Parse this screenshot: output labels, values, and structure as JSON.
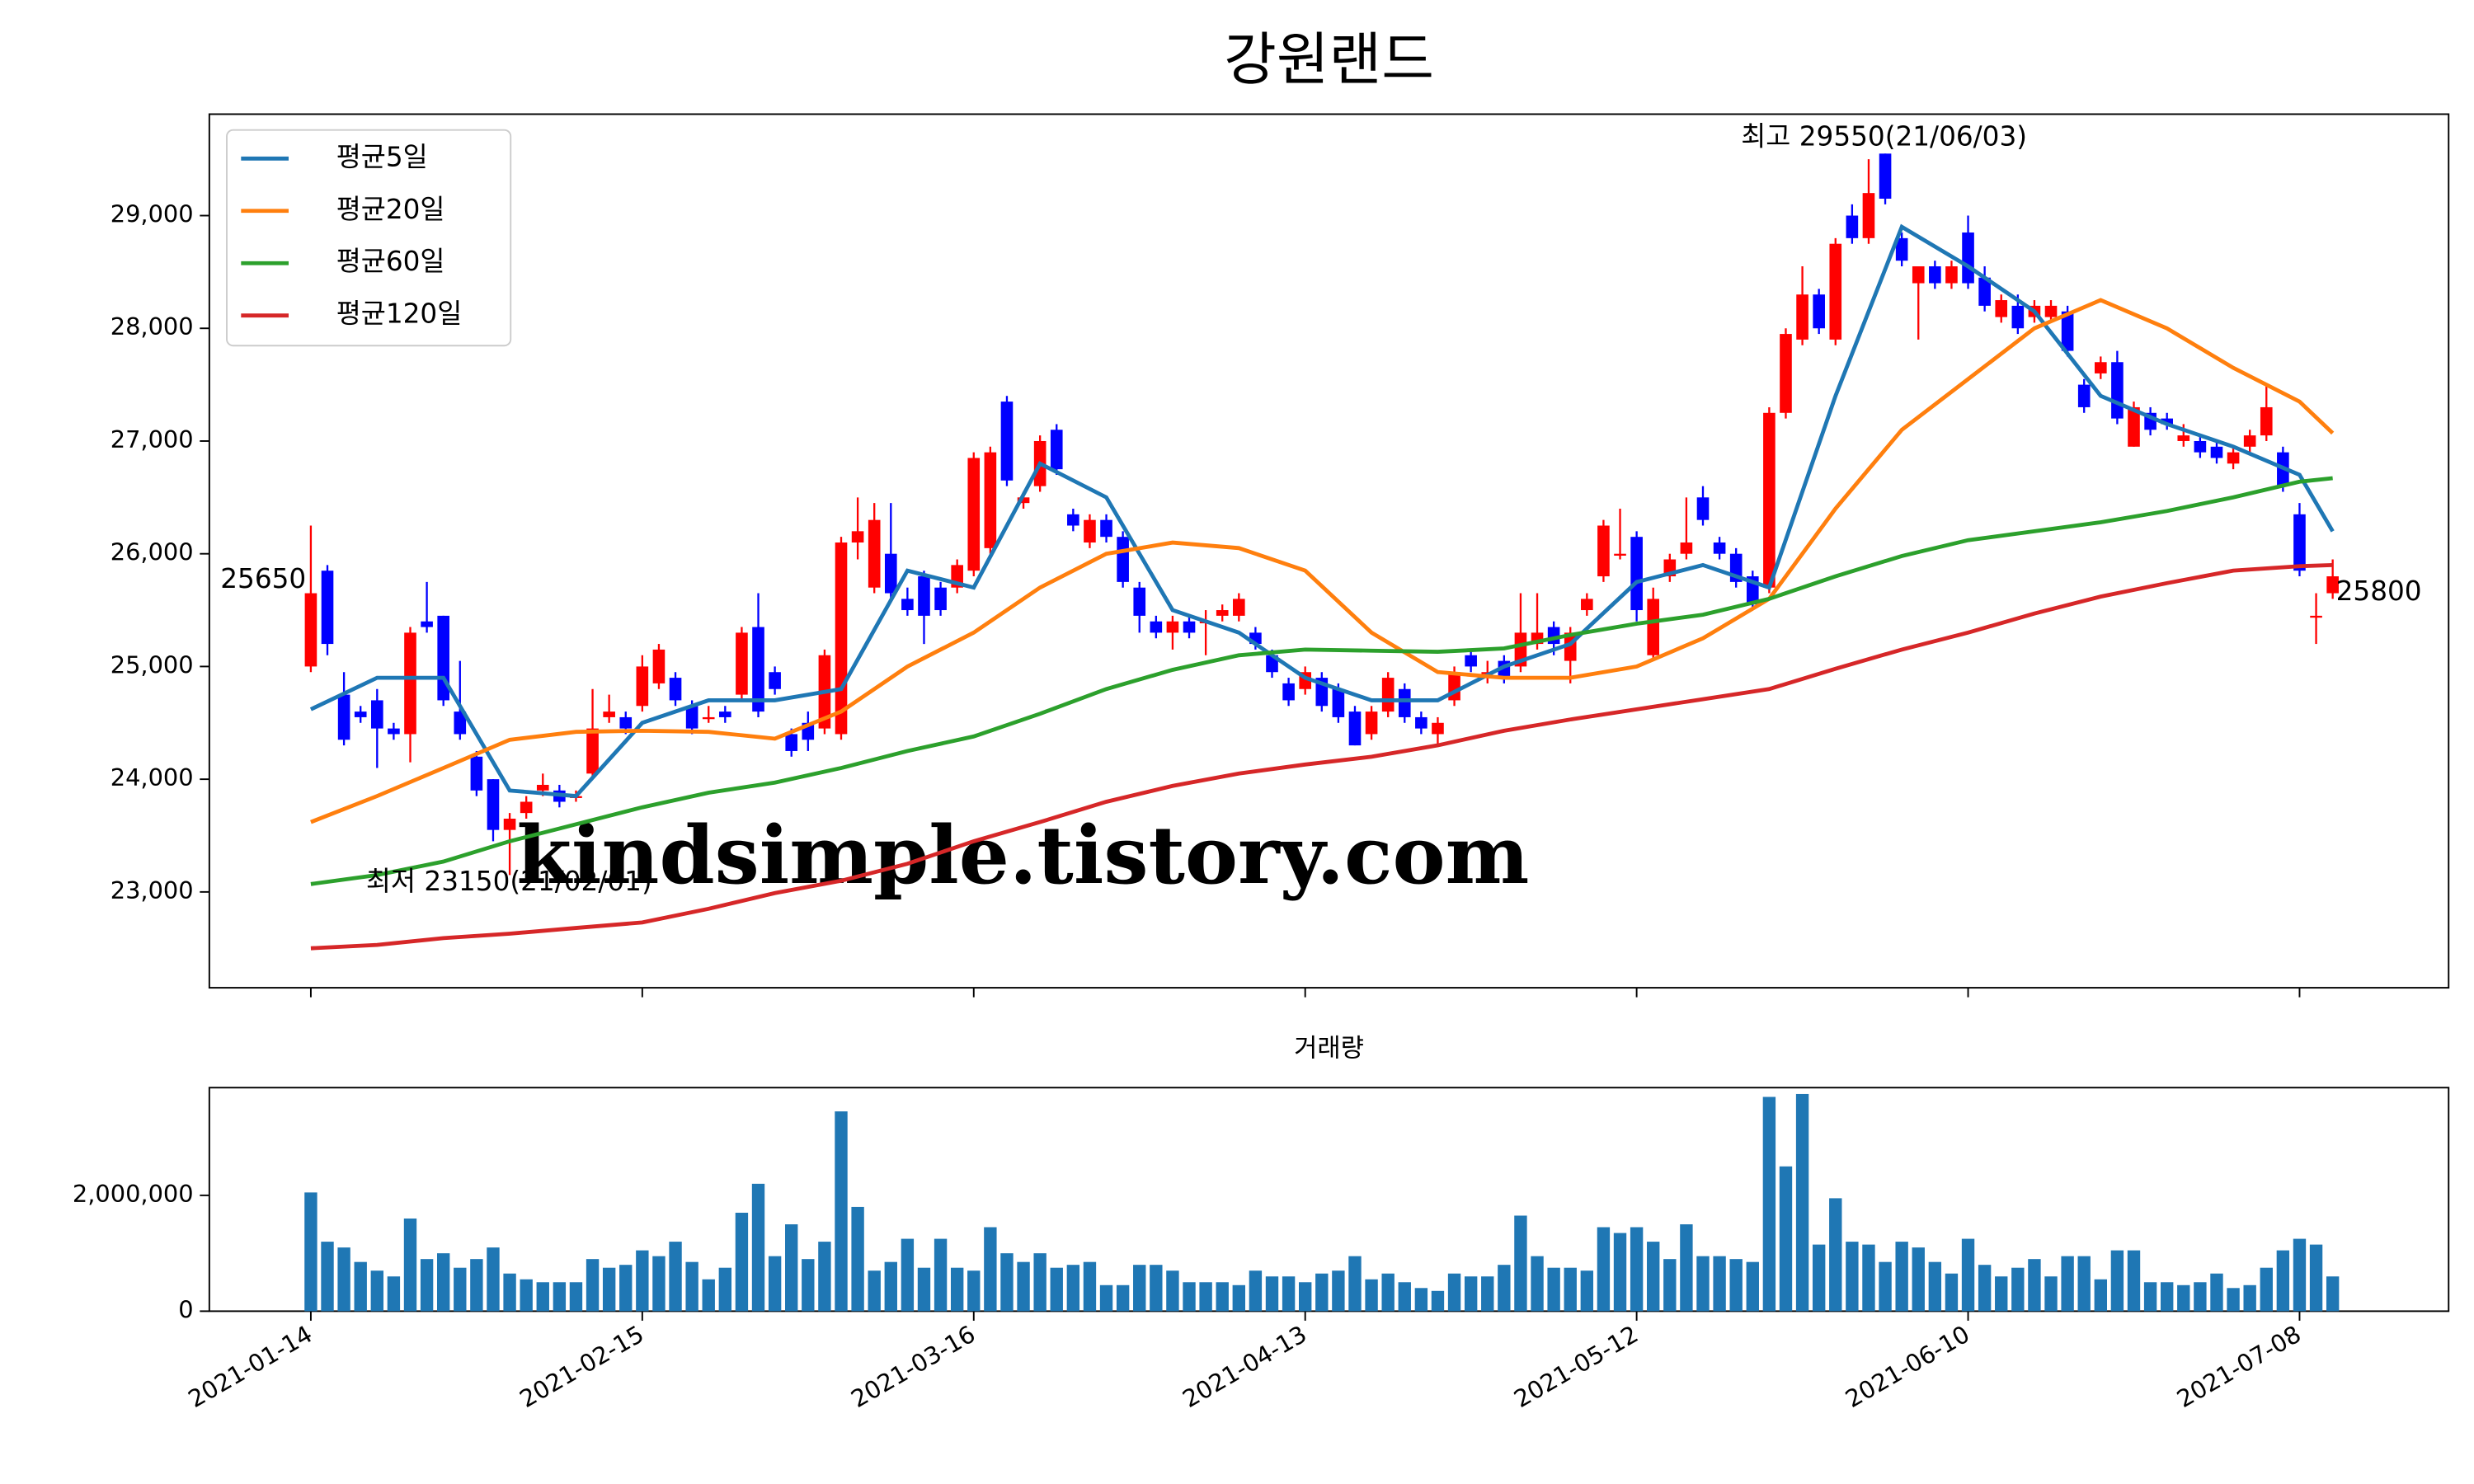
{
  "chart_data": [
    {
      "type": "candlestick",
      "title": "강원랜드",
      "up_color": "#ff0000",
      "down_color": "#0000ff",
      "ylim": [
        22150,
        29900
      ],
      "yticks": [
        {
          "value": 23000,
          "label": "23,000"
        },
        {
          "value": 24000,
          "label": "24,000"
        },
        {
          "value": 25000,
          "label": "25,000"
        },
        {
          "value": 26000,
          "label": "26,000"
        },
        {
          "value": 27000,
          "label": "27,000"
        },
        {
          "value": 28000,
          "label": "28,000"
        },
        {
          "value": 29000,
          "label": "29,000"
        }
      ],
      "open": [
        25000,
        25850,
        24750,
        24600,
        24700,
        24450,
        24400,
        25400,
        25450,
        24600,
        24200,
        24000,
        23550,
        23700,
        23900,
        23900,
        23850,
        24050,
        24550,
        24550,
        24650,
        24850,
        24900,
        24650,
        24550,
        24600,
        24750,
        25350,
        24950,
        24400,
        24500,
        24450,
        24400,
        26100,
        25700,
        26000,
        25600,
        25800,
        25700,
        25700,
        25850,
        26050,
        27350,
        26450,
        26600,
        27100,
        26350,
        26100,
        26300,
        26150,
        25700,
        25400,
        25300,
        25400,
        25400,
        25450,
        25450,
        25300,
        25100,
        24850,
        24800,
        24900,
        24800,
        24600,
        24400,
        24600,
        24800,
        24550,
        24400,
        24700,
        25100,
        24950,
        25050,
        25000,
        25200,
        25350,
        25050,
        25500,
        25800,
        26000,
        26150,
        25100,
        25800,
        26000,
        26500,
        26100,
        26000,
        25800,
        25700,
        27250,
        27900,
        28300,
        27900,
        29000,
        28800,
        29550,
        28800,
        28400,
        28550,
        28400,
        28850,
        28450,
        28100,
        28200,
        28100,
        28100,
        28150,
        27500,
        27600,
        27700,
        26950,
        27250,
        27200,
        27000,
        27000,
        26950,
        26800,
        26950,
        27050,
        26900,
        26350,
        25450,
        25650
      ],
      "high": [
        26250,
        25900,
        24950,
        24650,
        24800,
        24500,
        25350,
        25750,
        25450,
        25050,
        24250,
        24000,
        23700,
        23850,
        24050,
        23950,
        23900,
        24800,
        24750,
        24600,
        25100,
        25200,
        24950,
        24700,
        24650,
        24650,
        25350,
        25650,
        25000,
        24450,
        24600,
        25150,
        26150,
        26500,
        26450,
        26450,
        25700,
        25850,
        25750,
        25950,
        26900,
        26950,
        27400,
        26550,
        27050,
        27150,
        26400,
        26350,
        26350,
        26200,
        25750,
        25450,
        25450,
        25450,
        25500,
        25550,
        25650,
        25350,
        25150,
        24900,
        25000,
        24950,
        24850,
        24650,
        24650,
        24950,
        24850,
        24600,
        24550,
        25000,
        25150,
        25050,
        25100,
        25650,
        25650,
        25400,
        25350,
        25650,
        26300,
        26400,
        26200,
        25700,
        26000,
        26500,
        26600,
        26150,
        26050,
        25850,
        27300,
        28000,
        28550,
        28350,
        28800,
        29100,
        29500,
        29550,
        28850,
        28500,
        28600,
        28600,
        29000,
        28550,
        28300,
        28300,
        28250,
        28250,
        28200,
        27550,
        27750,
        27800,
        27350,
        27300,
        27250,
        27150,
        27050,
        27000,
        26950,
        27100,
        27500,
        26950,
        26450,
        25650,
        25950
      ],
      "low": [
        24950,
        25100,
        24300,
        24500,
        24100,
        24350,
        24150,
        25300,
        24650,
        24350,
        23850,
        23450,
        23150,
        23650,
        23850,
        23750,
        23800,
        24000,
        24500,
        24400,
        24600,
        24800,
        24650,
        24400,
        24500,
        24500,
        24700,
        24550,
        24750,
        24200,
        24250,
        24400,
        24350,
        25950,
        25650,
        25600,
        25450,
        25200,
        25450,
        25650,
        25800,
        26000,
        26600,
        26400,
        26550,
        26700,
        26200,
        26050,
        26100,
        25700,
        25300,
        25250,
        25150,
        25250,
        25100,
        25400,
        25400,
        25150,
        24900,
        24650,
        24750,
        24600,
        24500,
        24300,
        24350,
        24550,
        24500,
        24400,
        24300,
        24650,
        24950,
        24850,
        24850,
        24950,
        25150,
        25100,
        24850,
        25450,
        25750,
        25950,
        25400,
        25050,
        25750,
        25950,
        26250,
        25950,
        25700,
        25500,
        25650,
        27200,
        27850,
        27950,
        27850,
        28750,
        28750,
        29100,
        28550,
        27900,
        28350,
        28350,
        28350,
        28150,
        28050,
        27950,
        28050,
        28050,
        27750,
        27250,
        27550,
        27150,
        26950,
        27050,
        27100,
        26950,
        26850,
        26800,
        26750,
        26900,
        27000,
        26550,
        25800,
        25200,
        25600
      ],
      "close": [
        25650,
        25200,
        24350,
        24550,
        24450,
        24400,
        25300,
        25350,
        24700,
        24400,
        23900,
        23550,
        23650,
        23800,
        23950,
        23800,
        23850,
        24450,
        24600,
        24450,
        25000,
        25150,
        24700,
        24450,
        24550,
        24550,
        25300,
        24600,
        24800,
        24250,
        24350,
        25100,
        26100,
        26200,
        26300,
        25650,
        25500,
        25450,
        25500,
        25900,
        26850,
        26900,
        26650,
        26500,
        27000,
        26750,
        26250,
        26300,
        26150,
        25750,
        25450,
        25300,
        25400,
        25300,
        25400,
        25500,
        25600,
        25200,
        24950,
        24700,
        24950,
        24650,
        24550,
        24300,
        24600,
        24900,
        24550,
        24450,
        24500,
        24950,
        25000,
        24950,
        24900,
        25300,
        25300,
        25200,
        25300,
        25600,
        26250,
        26000,
        25500,
        25600,
        25950,
        26100,
        26300,
        26000,
        25750,
        25550,
        27250,
        27950,
        28300,
        28000,
        28750,
        28800,
        29200,
        29150,
        28600,
        28550,
        28400,
        28550,
        28400,
        28200,
        28250,
        28000,
        28200,
        28200,
        27800,
        27300,
        27700,
        27200,
        27300,
        27100,
        27150,
        27050,
        26900,
        26850,
        26900,
        27050,
        27300,
        26600,
        25850,
        25450,
        25800
      ],
      "series": [
        {
          "name": "평균5일",
          "color": "#1f77b4",
          "x": [
            0,
            4,
            8,
            12,
            16,
            20,
            24,
            28,
            32,
            36,
            40,
            44,
            48,
            52,
            56,
            60,
            64,
            68,
            72,
            76,
            80,
            84,
            88,
            92,
            96,
            100,
            104,
            108,
            112,
            116,
            120,
            122
          ],
          "values": [
            24620,
            24900,
            24900,
            23900,
            23850,
            24500,
            24700,
            24700,
            24800,
            25850,
            25700,
            26800,
            26500,
            25500,
            25300,
            24900,
            24700,
            24700,
            25000,
            25200,
            25750,
            25900,
            25700,
            27400,
            28900,
            28550,
            28150,
            27400,
            27150,
            26950,
            26700,
            26200
          ]
        },
        {
          "name": "평균20일",
          "color": "#ff7f0e",
          "x": [
            0,
            4,
            8,
            12,
            16,
            20,
            24,
            28,
            32,
            36,
            40,
            44,
            48,
            52,
            56,
            60,
            64,
            68,
            72,
            76,
            80,
            84,
            88,
            92,
            96,
            100,
            104,
            108,
            112,
            116,
            120,
            122
          ],
          "values": [
            23620,
            23850,
            24100,
            24350,
            24420,
            24430,
            24420,
            24360,
            24600,
            25000,
            25300,
            25700,
            26000,
            26100,
            26050,
            25850,
            25300,
            24950,
            24900,
            24900,
            25000,
            25250,
            25600,
            26400,
            27100,
            27550,
            28000,
            28250,
            28000,
            27650,
            27350,
            27070
          ]
        },
        {
          "name": "평균60일",
          "color": "#2ca02c",
          "x": [
            0,
            4,
            8,
            12,
            16,
            20,
            24,
            28,
            32,
            36,
            40,
            44,
            48,
            52,
            56,
            60,
            64,
            68,
            72,
            76,
            80,
            84,
            88,
            92,
            96,
            100,
            104,
            108,
            112,
            116,
            120,
            122
          ],
          "values": [
            23070,
            23150,
            23270,
            23450,
            23600,
            23750,
            23880,
            23970,
            24100,
            24250,
            24380,
            24580,
            24800,
            24970,
            25100,
            25150,
            25140,
            25130,
            25160,
            25280,
            25380,
            25460,
            25600,
            25800,
            25980,
            26120,
            26200,
            26280,
            26380,
            26500,
            26640,
            26670
          ]
        },
        {
          "name": "평균120일",
          "color": "#d62728",
          "x": [
            0,
            4,
            8,
            12,
            16,
            20,
            24,
            28,
            32,
            36,
            40,
            44,
            48,
            52,
            56,
            60,
            64,
            68,
            72,
            76,
            80,
            84,
            88,
            92,
            96,
            100,
            104,
            108,
            112,
            116,
            120,
            122
          ],
          "values": [
            22500,
            22530,
            22590,
            22630,
            22680,
            22730,
            22850,
            22990,
            23100,
            23250,
            23450,
            23620,
            23800,
            23940,
            24050,
            24130,
            24200,
            24300,
            24430,
            24530,
            24620,
            24710,
            24800,
            24980,
            25150,
            25300,
            25470,
            25620,
            25740,
            25850,
            25890,
            25900
          ]
        }
      ],
      "legend": "upper left",
      "annotations": [
        {
          "text": "최고 29550(21/06/03)",
          "color": "#ff0000"
        },
        {
          "text": "최저 23150(21/02/01)",
          "color": "#0000ff"
        },
        {
          "text": "25650",
          "color": "#000000"
        },
        {
          "text": "25800",
          "color": "#000000"
        }
      ],
      "watermark": "kindsimple.tistory.com",
      "watermark_color": "#e29be6"
    },
    {
      "type": "bar",
      "title": "거래량",
      "color": "#1f77b4",
      "categories": [
        "2021-01-14",
        null,
        null,
        null,
        null,
        null,
        null,
        null,
        null,
        null,
        null,
        null,
        null,
        null,
        null,
        null,
        null,
        null,
        null,
        null,
        "2021-02-15",
        null,
        null,
        null,
        null,
        null,
        null,
        null,
        null,
        null,
        null,
        null,
        null,
        null,
        null,
        null,
        null,
        null,
        null,
        null,
        "2021-03-16",
        null,
        null,
        null,
        null,
        null,
        null,
        null,
        null,
        null,
        null,
        null,
        null,
        null,
        null,
        null,
        null,
        null,
        null,
        null,
        "2021-04-13",
        null,
        null,
        null,
        null,
        null,
        null,
        null,
        null,
        null,
        null,
        null,
        null,
        null,
        null,
        null,
        null,
        null,
        null,
        null,
        "2021-05-12",
        null,
        null,
        null,
        null,
        null,
        null,
        null,
        null,
        null,
        null,
        null,
        null,
        null,
        null,
        null,
        null,
        null,
        null,
        null,
        "2021-06-10",
        null,
        null,
        null,
        null,
        null,
        null,
        null,
        null,
        null,
        null,
        null,
        null,
        null,
        null,
        null,
        null,
        null,
        null,
        null,
        "2021-07-08",
        null,
        null
      ],
      "values": [
        2050000,
        1200000,
        1100000,
        850000,
        700000,
        600000,
        1600000,
        900000,
        1000000,
        750000,
        900000,
        1100000,
        650000,
        550000,
        500000,
        500000,
        500000,
        900000,
        750000,
        800000,
        1050000,
        950000,
        1200000,
        850000,
        550000,
        750000,
        1700000,
        2200000,
        950000,
        1500000,
        900000,
        1200000,
        3450000,
        1800000,
        700000,
        850000,
        1250000,
        750000,
        1250000,
        750000,
        700000,
        1450000,
        1000000,
        850000,
        1000000,
        750000,
        800000,
        850000,
        450000,
        450000,
        800000,
        800000,
        700000,
        500000,
        500000,
        500000,
        450000,
        700000,
        600000,
        600000,
        500000,
        650000,
        700000,
        950000,
        550000,
        650000,
        500000,
        400000,
        350000,
        650000,
        600000,
        600000,
        800000,
        1650000,
        950000,
        750000,
        750000,
        700000,
        1450000,
        1350000,
        1450000,
        1200000,
        900000,
        1500000,
        950000,
        950000,
        900000,
        850000,
        3700000,
        2500000,
        3750000,
        1150000,
        1950000,
        1200000,
        1150000,
        850000,
        1200000,
        1100000,
        850000,
        650000,
        1250000,
        800000,
        600000,
        750000,
        900000,
        600000,
        950000,
        950000,
        550000,
        1050000,
        1050000,
        500000,
        500000,
        450000,
        500000,
        650000,
        400000,
        450000,
        750000,
        1050000,
        1250000,
        1150000,
        600000
      ],
      "ylim": [
        0,
        3860000
      ],
      "yticks": [
        0,
        {
          "value": 2000000,
          "label": "2,000,000"
        }
      ]
    }
  ]
}
